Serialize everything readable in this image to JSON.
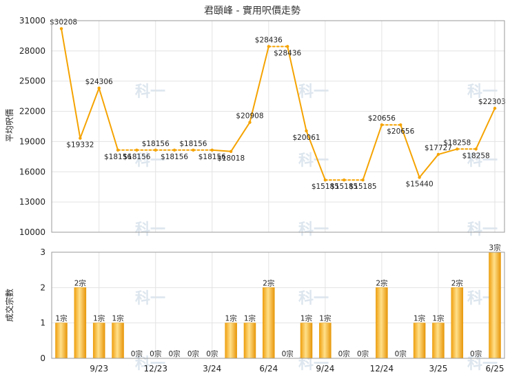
{
  "chart_data": [
    {
      "type": "line",
      "title": "君頤峰 - 實用呎價走勢",
      "ylabel": "平均呎價",
      "ylim": [
        10000,
        31000
      ],
      "yticks": [
        10000,
        13000,
        16000,
        19000,
        22000,
        25000,
        28000,
        31000
      ],
      "grid": true,
      "x_tick_labels": [
        "9/23",
        "12/23",
        "3/24",
        "6/24",
        "9/24",
        "12/24",
        "3/25",
        "6/25"
      ],
      "values": [
        30208,
        19332,
        24306,
        18156,
        18156,
        18156,
        18156,
        18156,
        18156,
        18018,
        20908,
        28436,
        28436,
        20061,
        15185,
        15185,
        15185,
        20656,
        20656,
        15440,
        17727,
        18258,
        18258,
        22303
      ],
      "labels": [
        "$30208",
        "$19332",
        "$24306",
        "$18156",
        "$18156",
        "$18156",
        "$18156",
        "$18156",
        "$18156",
        "$18018",
        "$20908",
        "$28436",
        "$28436",
        "$20061",
        "$15185",
        "$15185",
        "$15185",
        "$20656",
        "$20656",
        "$15440",
        "$17727",
        "$18258",
        "$18258",
        "$22303"
      ],
      "color": "#f5a300"
    },
    {
      "type": "bar",
      "ylabel": "成交宗數",
      "ylim": [
        0,
        3
      ],
      "yticks": [
        0,
        1,
        2,
        3
      ],
      "x_tick_labels": [
        "9/23",
        "12/23",
        "3/24",
        "6/24",
        "9/24",
        "12/24",
        "3/25",
        "6/25"
      ],
      "values": [
        1,
        2,
        1,
        1,
        0,
        0,
        0,
        0,
        0,
        1,
        1,
        2,
        0,
        1,
        1,
        0,
        0,
        2,
        0,
        1,
        1,
        2,
        0,
        3
      ],
      "labels": [
        "1宗",
        "2宗",
        "1宗",
        "1宗",
        "0宗",
        "0宗",
        "0宗",
        "0宗",
        "0宗",
        "1宗",
        "1宗",
        "2宗",
        "0宗",
        "1宗",
        "1宗",
        "0宗",
        "0宗",
        "2宗",
        "0宗",
        "1宗",
        "1宗",
        "2宗",
        "0宗",
        "3宗"
      ],
      "color": "#f5a300"
    }
  ],
  "watermark": "科一"
}
